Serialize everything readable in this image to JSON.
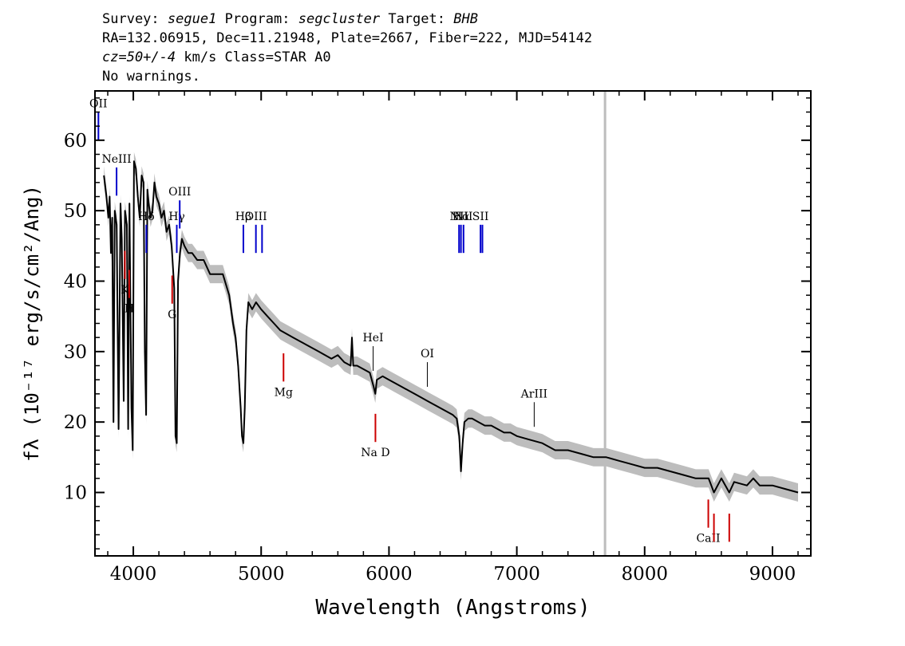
{
  "header": {
    "line1": {
      "survey_key": "Survey:",
      "survey": "segue1",
      "program_key": "Program:",
      "program": "segcluster",
      "target_key": "Target:",
      "target": "BHB"
    },
    "line2": "RA=132.06915, Dec=11.21948, Plate=2667, Fiber=222, MJD=54142",
    "line3": {
      "cz": "cz=50+/-4",
      "rest": "km/s Class=STAR A0"
    },
    "line4": "No warnings."
  },
  "colors": {
    "flux": "#000000",
    "error": "#bdbdbd",
    "emission": "#0000cc",
    "absorption": "#cc0000",
    "other": "#000000",
    "sky_line": "#bdbdbd"
  },
  "chart_data": {
    "type": "line",
    "xlabel": "Wavelength (Angstroms)",
    "ylabel": "fλ (10⁻¹⁷ erg/s/cm²/Ang)",
    "xlim": [
      3700,
      9300
    ],
    "ylim": [
      1,
      67
    ],
    "x_ticks": [
      4000,
      5000,
      6000,
      7000,
      8000,
      9000
    ],
    "y_ticks": [
      10,
      20,
      30,
      40,
      50,
      60
    ],
    "vertical_marker": 7690,
    "flux": {
      "x": [
        3770,
        3790,
        3805,
        3815,
        3825,
        3835,
        3845,
        3855,
        3870,
        3885,
        3900,
        3910,
        3925,
        3935,
        3950,
        3960,
        3970,
        3985,
        3995,
        4005,
        4020,
        4035,
        4050,
        4065,
        4080,
        4090,
        4100,
        4110,
        4120,
        4135,
        4150,
        4165,
        4180,
        4200,
        4220,
        4240,
        4260,
        4280,
        4300,
        4320,
        4330,
        4340,
        4350,
        4365,
        4380,
        4400,
        4430,
        4460,
        4500,
        4550,
        4600,
        4650,
        4700,
        4750,
        4780,
        4800,
        4820,
        4840,
        4850,
        4861,
        4872,
        4885,
        4900,
        4930,
        4960,
        5000,
        5050,
        5100,
        5150,
        5200,
        5250,
        5300,
        5350,
        5400,
        5450,
        5500,
        5550,
        5600,
        5650,
        5700,
        5710,
        5720,
        5750,
        5800,
        5850,
        5880,
        5893,
        5905,
        5950,
        6000,
        6050,
        6100,
        6150,
        6200,
        6250,
        6300,
        6350,
        6400,
        6450,
        6500,
        6530,
        6550,
        6563,
        6576,
        6590,
        6620,
        6650,
        6700,
        6750,
        6800,
        6850,
        6900,
        6950,
        7000,
        7100,
        7200,
        7300,
        7400,
        7500,
        7600,
        7700,
        7800,
        7900,
        8000,
        8100,
        8200,
        8300,
        8400,
        8500,
        8542,
        8600,
        8662,
        8700,
        8800,
        8850,
        8900,
        9000,
        9100,
        9200
      ],
      "y": [
        55,
        52,
        49,
        52,
        44,
        49,
        20,
        50,
        48,
        19,
        51,
        46,
        23,
        50,
        48,
        19,
        51,
        22,
        16,
        57,
        56,
        52,
        49,
        55,
        54,
        30,
        21,
        53,
        51,
        49,
        50,
        54,
        52,
        51,
        49,
        50,
        47,
        48,
        45,
        39,
        18,
        17,
        40,
        44,
        46,
        45,
        44,
        44,
        43,
        43,
        41,
        41,
        41,
        38,
        34,
        32,
        28,
        22,
        18,
        17,
        22,
        33,
        37,
        36,
        37,
        36,
        35,
        34,
        33,
        32.5,
        32,
        31.5,
        31,
        30.5,
        30,
        29.5,
        29,
        29.5,
        28.5,
        28,
        32,
        28,
        28,
        27.5,
        27,
        25,
        24,
        26,
        26.5,
        26,
        25.5,
        25,
        24.5,
        24,
        23.5,
        23,
        22.5,
        22,
        21.5,
        21,
        20.5,
        18,
        13,
        17,
        20,
        20.5,
        20.5,
        20,
        19.5,
        19.5,
        19,
        18.5,
        18.5,
        18,
        17.5,
        17,
        16,
        16,
        15.5,
        15,
        15,
        14.5,
        14,
        13.5,
        13.5,
        13,
        12.5,
        12,
        12,
        10,
        12,
        10,
        11.5,
        11,
        12,
        11,
        11,
        10.5,
        10
      ]
    },
    "lines": {
      "emission": [
        {
          "label": "OII",
          "x": 3727
        },
        {
          "label": "NeIII",
          "x": 3869
        },
        {
          "label": "Hδ",
          "x": 4102
        },
        {
          "label": "Hγ",
          "x": 4340
        },
        {
          "label": "OIII",
          "x": 4363
        },
        {
          "label": "Hβ",
          "x": 4861
        },
        {
          "label": "OIII",
          "x": 4959
        },
        {
          "label": "",
          "x": 5007
        },
        {
          "label": "NII",
          "x": 6548
        },
        {
          "label": "Hα",
          "x": 6563
        },
        {
          "label": "NII",
          "x": 6583
        },
        {
          "label": "SII",
          "x": 6716
        },
        {
          "label": "",
          "x": 6731
        }
      ],
      "absorption": [
        {
          "label": "K",
          "x": 3934
        },
        {
          "label": "H",
          "x": 3968
        },
        {
          "label": "G",
          "x": 4304
        },
        {
          "label": "Mg",
          "x": 5175
        },
        {
          "label": "Na  D",
          "x": 5894
        },
        {
          "label": "CaII",
          "x": 8498
        },
        {
          "label": "",
          "x": 8542
        },
        {
          "label": "",
          "x": 8662
        }
      ],
      "other": [
        {
          "label": "HeI",
          "x": 5876
        },
        {
          "label": "OI",
          "x": 6300
        },
        {
          "label": "ArIII",
          "x": 7136
        }
      ]
    }
  }
}
